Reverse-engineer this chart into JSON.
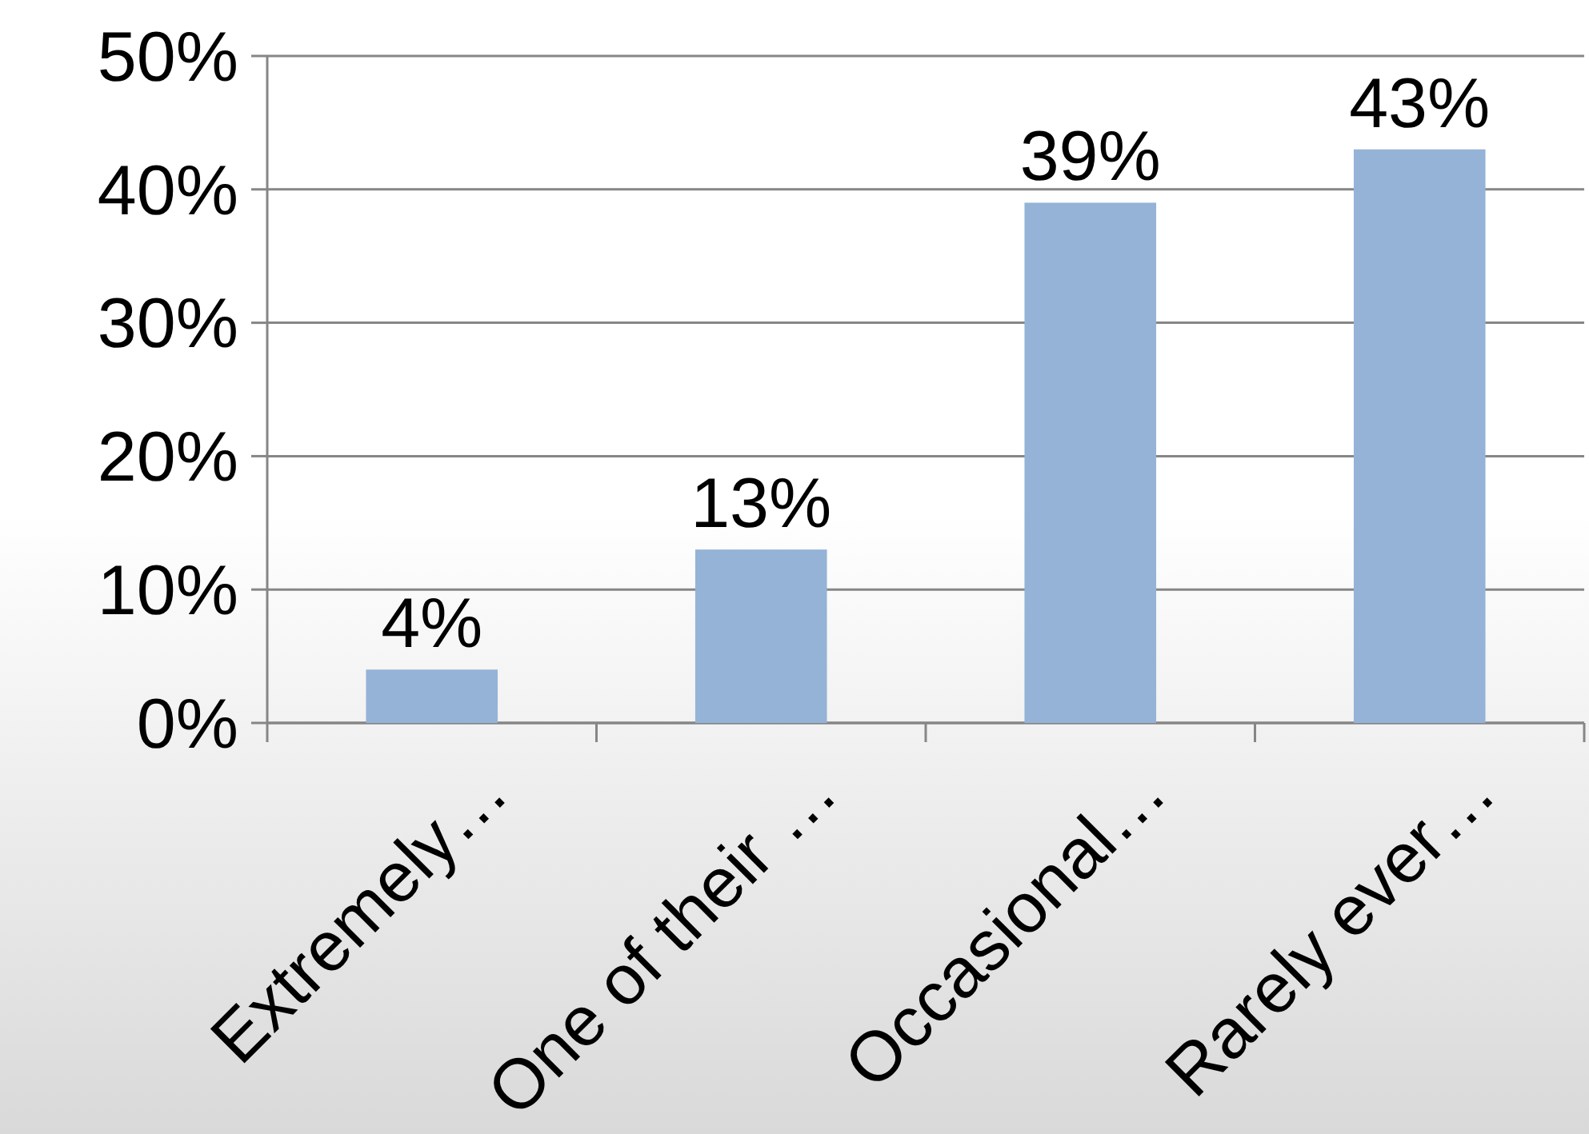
{
  "chart_data": {
    "type": "bar",
    "categories": [
      "Extremely…",
      "One of their …",
      "Occasional…",
      "Rarely ever…"
    ],
    "values": [
      4,
      13,
      39,
      43
    ],
    "color": "#95b3d7",
    "value_labels": [
      "4%",
      "13%",
      "39%",
      "43%"
    ],
    "ylim": [
      0,
      50
    ],
    "yticks": [
      {
        "value": 0,
        "label": "0%"
      },
      {
        "value": 10,
        "label": "10%"
      },
      {
        "value": 20,
        "label": "20%"
      },
      {
        "value": 30,
        "label": "30%"
      },
      {
        "value": 40,
        "label": "40%"
      },
      {
        "value": 50,
        "label": "50%"
      }
    ],
    "grid": "y"
  }
}
